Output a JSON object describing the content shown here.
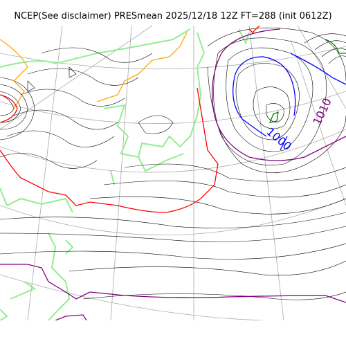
{
  "title": "NCEP(See disclaimer) PRESmean 2025/12/18 12Z FT=288 (init 0612Z)",
  "contour_labels": [
    {
      "text": "1000",
      "color": "#0000ff"
    },
    {
      "text": "1010",
      "color": "#800080"
    }
  ],
  "colors": {
    "isobar": "#000000",
    "coastline": "#90ee90",
    "orange_contour": "#ffa500",
    "red_contour": "#ff0000",
    "purple_contour": "#800080",
    "blue_contour": "#0000ff",
    "green_contour": "#008000",
    "graticule": "#a9a9a9"
  }
}
